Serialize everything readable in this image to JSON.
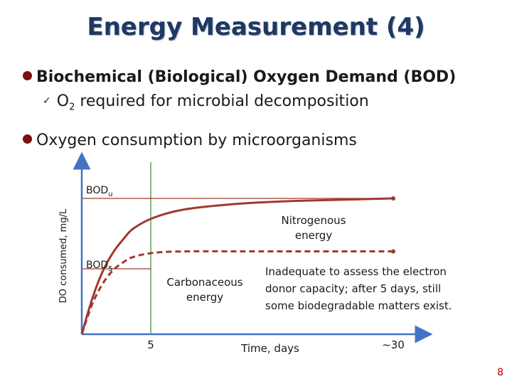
{
  "slide": {
    "title": "Energy Measurement (4)",
    "bullet1": "Biochemical (Biological) Oxygen Demand (BOD)",
    "sub1_prefix": "O",
    "sub1_subscript": "2",
    "sub1_rest": " required for microbial decomposition",
    "bullet2": "Oxygen consumption by microorganisms",
    "page_number": "8",
    "check_icon": "checkmark-icon",
    "colors": {
      "title": "#1f3864",
      "bullet": "#7a1010",
      "curve": "#a0392f",
      "axis": "#4472c4",
      "marker": "#2e8b2e",
      "page_number": "#c00000"
    }
  },
  "chart_data": {
    "type": "line",
    "xlabel": "Time, days",
    "ylabel": "DO consumed, mg/L",
    "x_ticks": [
      "5",
      "~30"
    ],
    "series": [
      {
        "name": "Carbonaceous energy",
        "style": "solid",
        "x": [
          0,
          1,
          2,
          3,
          4,
          5,
          7,
          10,
          15,
          20,
          25,
          30
        ],
        "y": [
          0,
          0.26,
          0.46,
          0.6,
          0.7,
          0.78,
          0.86,
          0.92,
          0.96,
          0.98,
          0.99,
          1.0
        ]
      },
      {
        "name": "",
        "style": "dashed",
        "x": [
          0,
          1,
          2,
          3,
          4,
          5,
          7,
          10,
          15,
          20,
          25,
          30
        ],
        "y": [
          0,
          0.22,
          0.37,
          0.47,
          0.53,
          0.57,
          0.6,
          0.61,
          0.61,
          0.61,
          0.61,
          0.61
        ]
      }
    ],
    "markers": {
      "vertical_line_x": 5,
      "bod_u_level": 1.0,
      "bod_5_level": 0.57
    },
    "labels": {
      "bod_u_main": "BOD",
      "bod_u_sub": "u",
      "bod_5_main": "BOD",
      "bod_5_sub": "5",
      "nitrogenous_1": "Nitrogenous",
      "nitrogenous_2": "energy",
      "carbonaceous_1": "Carbonaceous",
      "carbonaceous_2": "energy",
      "note_1": "Inadequate to assess the electron",
      "note_2": "donor capacity; after 5 days, still",
      "note_3": "some biodegradable matters exist."
    },
    "grid": false
  }
}
